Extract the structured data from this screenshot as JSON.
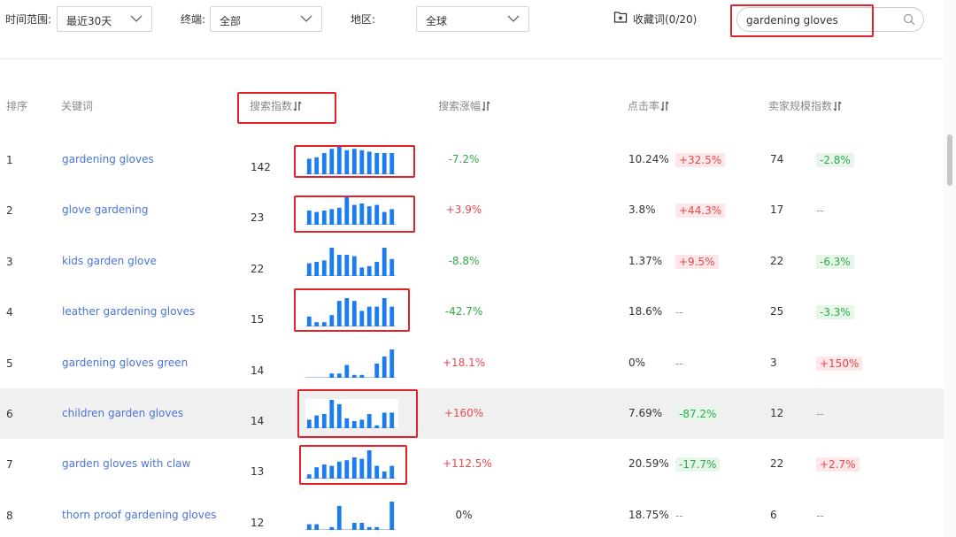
{
  "filters": {
    "time_label": "时间范围:",
    "time_value": "最近30天",
    "device_label": "终端:",
    "device_value": "全部",
    "region_label": "地区:",
    "region_value": "全球",
    "favorites_label": "收藏词(0/20)",
    "search_value": "gardening gloves"
  },
  "columns": {
    "rank": "排序",
    "keyword": "关键词",
    "search_index": "搜索指数",
    "search_growth": "搜索涨幅",
    "ctr": "点击率",
    "seller_index": "卖家规模指数"
  },
  "colors": {
    "bar": "#1a7cf0",
    "baseline": "#a9c8f0",
    "up": "#e5484d",
    "down": "#2faa4a",
    "link": "#4a74d8",
    "annotation": "#e3212a"
  },
  "rows": [
    {
      "rank": "1",
      "keyword": "gardening gloves",
      "index": "142",
      "growth": "-7.2%",
      "growth_dir": "down",
      "ctr": "10.24%",
      "ctr_change": "+32.5%",
      "ctr_dir": "up",
      "sellers": "74",
      "sellers_change": "-2.8%",
      "sellers_dir": "down",
      "trend": [
        0.55,
        0.6,
        0.75,
        0.9,
        1,
        0.85,
        0.9,
        0.85,
        0.8,
        0.75,
        0.75,
        0.75
      ],
      "highlight": false
    },
    {
      "rank": "2",
      "keyword": "glove gardening",
      "index": "23",
      "growth": "+3.9%",
      "growth_dir": "up",
      "ctr": "3.8%",
      "ctr_change": "+44.3%",
      "ctr_dir": "up",
      "sellers": "17",
      "sellers_change": "--",
      "sellers_dir": "none",
      "trend": [
        0.5,
        0.45,
        0.5,
        0.55,
        0.6,
        1,
        0.7,
        0.75,
        0.65,
        0.7,
        0.45,
        0.55
      ],
      "highlight": false
    },
    {
      "rank": "3",
      "keyword": "kids garden glove",
      "index": "22",
      "growth": "-8.8%",
      "growth_dir": "down",
      "ctr": "1.37%",
      "ctr_change": "+9.5%",
      "ctr_dir": "up",
      "sellers": "22",
      "sellers_change": "-6.3%",
      "sellers_dir": "down",
      "trend": [
        0.45,
        0.5,
        0.55,
        1,
        0.75,
        0.75,
        0.7,
        0.3,
        0.35,
        0.5,
        1,
        0.6
      ],
      "highlight": false
    },
    {
      "rank": "4",
      "keyword": "leather gardening gloves",
      "index": "15",
      "growth": "-42.7%",
      "growth_dir": "down",
      "ctr": "18.6%",
      "ctr_change": "--",
      "ctr_dir": "none",
      "sellers": "25",
      "sellers_change": "-3.3%",
      "sellers_dir": "down",
      "trend": [
        0.35,
        0.15,
        0.15,
        0.4,
        0.9,
        1,
        0.9,
        0.55,
        0.7,
        0.7,
        1,
        0.7
      ],
      "highlight": false
    },
    {
      "rank": "5",
      "keyword": "gardening gloves green",
      "index": "14",
      "growth": "+18.1%",
      "growth_dir": "up",
      "ctr": "0%",
      "ctr_change": "--",
      "ctr_dir": "none",
      "sellers": "3",
      "sellers_change": "+150%",
      "sellers_dir": "up",
      "trend": [
        0,
        0,
        0,
        0.15,
        0.15,
        0.45,
        0.1,
        0.1,
        0,
        0.5,
        0.75,
        1
      ],
      "highlight": false
    },
    {
      "rank": "6",
      "keyword": "children garden gloves",
      "index": "14",
      "growth": "+160%",
      "growth_dir": "up",
      "ctr": "7.69%",
      "ctr_change": "-87.2%",
      "ctr_dir": "down",
      "sellers": "12",
      "sellers_change": "--",
      "sellers_dir": "none",
      "trend": [
        0.3,
        0.45,
        0.5,
        1,
        0.85,
        0.35,
        0.25,
        0.3,
        0.5,
        0.1,
        0.55,
        0.55
      ],
      "highlight": true
    },
    {
      "rank": "7",
      "keyword": "garden gloves with claw",
      "index": "13",
      "growth": "+112.5%",
      "growth_dir": "up",
      "ctr": "20.59%",
      "ctr_change": "-17.7%",
      "ctr_dir": "down",
      "sellers": "22",
      "sellers_change": "+2.7%",
      "sellers_dir": "up",
      "trend": [
        0.15,
        0.4,
        0.5,
        0.45,
        0.6,
        0.65,
        0.75,
        0.7,
        1,
        0.45,
        0.25,
        0.45
      ],
      "highlight": false
    },
    {
      "rank": "8",
      "keyword": "thorn proof gardening gloves",
      "index": "12",
      "growth": "0%",
      "growth_dir": "flat",
      "ctr": "18.75%",
      "ctr_change": "--",
      "ctr_dir": "none",
      "sellers": "6",
      "sellers_change": "--",
      "sellers_dir": "none",
      "trend": [
        0.2,
        0.2,
        0,
        0.1,
        0.85,
        0,
        0.25,
        0.25,
        0.1,
        0.1,
        0,
        1
      ],
      "highlight": false
    }
  ]
}
